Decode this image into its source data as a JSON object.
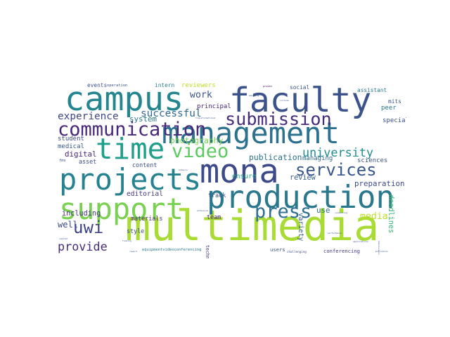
{
  "chart_data": {
    "type": "wordcloud",
    "colormap": "viridis",
    "background": "#ffffff",
    "words": [
      {
        "text": "multimedia",
        "weight": 1.0,
        "color": "#a8db34",
        "orientation": "horizontal"
      },
      {
        "text": "faculty",
        "weight": 0.8,
        "color": "#3b528b",
        "orientation": "horizontal"
      },
      {
        "text": "campus",
        "weight": 0.78,
        "color": "#25858e",
        "orientation": "horizontal"
      },
      {
        "text": "mona",
        "weight": 0.78,
        "color": "#3e4989",
        "orientation": "horizontal"
      },
      {
        "text": "production",
        "weight": 0.74,
        "color": "#2a788e",
        "orientation": "horizontal"
      },
      {
        "text": "management",
        "weight": 0.7,
        "color": "#2c718e",
        "orientation": "horizontal"
      },
      {
        "text": "projects",
        "weight": 0.7,
        "color": "#26828e",
        "orientation": "horizontal"
      },
      {
        "text": "support",
        "weight": 0.7,
        "color": "#7ad151",
        "orientation": "horizontal"
      },
      {
        "text": "time",
        "weight": 0.68,
        "color": "#1f9e89",
        "orientation": "horizontal"
      },
      {
        "text": "communication",
        "weight": 0.45,
        "color": "#482878",
        "orientation": "horizontal"
      },
      {
        "text": "submission",
        "weight": 0.42,
        "color": "#472d7b",
        "orientation": "horizontal"
      },
      {
        "text": "video",
        "weight": 0.45,
        "color": "#5ec962",
        "orientation": "horizontal"
      },
      {
        "text": "services",
        "weight": 0.4,
        "color": "#39568c",
        "orientation": "horizontal"
      },
      {
        "text": "press",
        "weight": 0.45,
        "color": "#2e6e8e",
        "orientation": "horizontal"
      },
      {
        "text": "uwi",
        "weight": 0.4,
        "color": "#414487",
        "orientation": "horizontal"
      },
      {
        "text": "university",
        "weight": 0.28,
        "color": "#228c8d",
        "orientation": "horizontal"
      },
      {
        "text": "provide",
        "weight": 0.28,
        "color": "#472d7b",
        "orientation": "horizontal"
      },
      {
        "text": "experience",
        "weight": 0.24,
        "color": "#404688",
        "orientation": "horizontal"
      },
      {
        "text": "successful",
        "weight": 0.24,
        "color": "#31688e",
        "orientation": "horizontal"
      },
      {
        "text": "work",
        "weight": 0.22,
        "color": "#3b528b",
        "orientation": "horizontal"
      },
      {
        "text": "media",
        "weight": 0.22,
        "color": "#bddf26",
        "orientation": "horizontal"
      },
      {
        "text": "photography",
        "weight": 0.19,
        "color": "#7ad151",
        "orientation": "horizontal"
      },
      {
        "text": "publication",
        "weight": 0.19,
        "color": "#2c718e",
        "orientation": "horizontal"
      },
      {
        "text": "preparation",
        "weight": 0.18,
        "color": "#3e4989",
        "orientation": "horizontal"
      },
      {
        "text": "system",
        "weight": 0.18,
        "color": "#2a788e",
        "orientation": "horizontal"
      },
      {
        "text": "digital",
        "weight": 0.18,
        "color": "#482475",
        "orientation": "horizontal"
      },
      {
        "text": "review",
        "weight": 0.17,
        "color": "#355f8d",
        "orientation": "horizontal"
      },
      {
        "text": "deadlines",
        "weight": 0.17,
        "color": "#35b779",
        "orientation": "vertical"
      },
      {
        "text": "variety",
        "weight": 0.16,
        "color": "#35608d",
        "orientation": "vertical"
      },
      {
        "text": "well",
        "weight": 0.2,
        "color": "#3e4989",
        "orientation": "horizontal"
      },
      {
        "text": "use",
        "weight": 0.18,
        "color": "#2c718e",
        "orientation": "horizontal"
      },
      {
        "text": "including",
        "weight": 0.17,
        "color": "#46337e",
        "orientation": "horizontal"
      },
      {
        "text": "editorial",
        "weight": 0.16,
        "color": "#443983",
        "orientation": "horizontal"
      },
      {
        "text": "ensure",
        "weight": 0.16,
        "color": "#22a785",
        "orientation": "horizontal"
      },
      {
        "text": "managing",
        "weight": 0.15,
        "color": "#31688e",
        "orientation": "horizontal"
      },
      {
        "text": "sciences",
        "weight": 0.15,
        "color": "#3b528b",
        "orientation": "horizontal"
      },
      {
        "text": "special",
        "weight": 0.15,
        "color": "#3b528b",
        "orientation": "horizontal"
      },
      {
        "text": "peer",
        "weight": 0.15,
        "color": "#2a788e",
        "orientation": "horizontal"
      },
      {
        "text": "principal",
        "weight": 0.15,
        "color": "#482878",
        "orientation": "horizontal"
      },
      {
        "text": "student",
        "weight": 0.15,
        "color": "#3e4989",
        "orientation": "horizontal"
      },
      {
        "text": "medical",
        "weight": 0.15,
        "color": "#38588c",
        "orientation": "horizontal"
      },
      {
        "text": "asset",
        "weight": 0.14,
        "color": "#3e4989",
        "orientation": "horizontal"
      },
      {
        "text": "content",
        "weight": 0.14,
        "color": "#3b528b",
        "orientation": "horizontal"
      },
      {
        "text": "materials",
        "weight": 0.14,
        "color": "#472d7b",
        "orientation": "horizontal"
      },
      {
        "text": "style",
        "weight": 0.14,
        "color": "#3e4989",
        "orientation": "horizontal"
      },
      {
        "text": "team",
        "weight": 0.14,
        "color": "#481f70",
        "orientation": "horizontal"
      },
      {
        "text": "track",
        "weight": 0.14,
        "color": "#3b528b",
        "orientation": "horizontal"
      },
      {
        "text": "technologies",
        "weight": 0.11,
        "color": "#46337e",
        "orientation": "vertical"
      },
      {
        "text": "reviewers",
        "weight": 0.15,
        "color": "#bddf26",
        "orientation": "horizontal"
      },
      {
        "text": "events",
        "weight": 0.13,
        "color": "#3b528b",
        "orientation": "horizontal"
      },
      {
        "text": "intern",
        "weight": 0.13,
        "color": "#2a788e",
        "orientation": "horizontal"
      },
      {
        "text": "social",
        "weight": 0.13,
        "color": "#3b528b",
        "orientation": "horizontal"
      },
      {
        "text": "assistant",
        "weight": 0.13,
        "color": "#2a788e",
        "orientation": "horizontal"
      },
      {
        "text": "mits",
        "weight": 0.13,
        "color": "#3b528b",
        "orientation": "horizontal"
      },
      {
        "text": "conferencing",
        "weight": 0.12,
        "color": "#443983",
        "orientation": "horizontal"
      },
      {
        "text": "users",
        "weight": 0.12,
        "color": "#3b528b",
        "orientation": "horizontal"
      },
      {
        "text": "equipmentvideoconferencing",
        "weight": 0.09,
        "color": "#2a788e",
        "orientation": "horizontal"
      },
      {
        "text": "operation",
        "weight": 0.09,
        "color": "#3b528b",
        "orientation": "horizontal"
      },
      {
        "text": "fms",
        "weight": 0.09,
        "color": "#3b528b",
        "orientation": "horizontal"
      },
      {
        "text": "challenging",
        "weight": 0.07,
        "color": "#3e4989",
        "orientation": "horizontal"
      },
      {
        "text": "proven",
        "weight": 0.06,
        "color": "#440154",
        "orientation": "horizontal"
      },
      {
        "text": "transformational",
        "weight": 0.05,
        "color": "#3b528b",
        "orientation": "horizontal"
      },
      {
        "text": "performance",
        "weight": 0.05,
        "color": "#3b528b",
        "orientation": "horizontal"
      },
      {
        "text": "applications",
        "weight": 0.05,
        "color": "#3b528b",
        "orientation": "horizontal"
      },
      {
        "text": "conducting",
        "weight": 0.05,
        "color": "#3b528b",
        "orientation": "horizontal"
      },
      {
        "text": "extensive",
        "weight": 0.05,
        "color": "#3b528b",
        "orientation": "horizontal"
      },
      {
        "text": "enhance",
        "weight": 0.04,
        "color": "#3b528b",
        "orientation": "horizontal"
      },
      {
        "text": "emerging",
        "weight": 0.04,
        "color": "#3b528b",
        "orientation": "horizontal"
      },
      {
        "text": "include",
        "weight": 0.04,
        "color": "#3b528b",
        "orientation": "horizontal"
      },
      {
        "text": "funding",
        "weight": 0.04,
        "color": "#3b528b",
        "orientation": "horizontal"
      },
      {
        "text": "capital",
        "weight": 0.04,
        "color": "#3b528b",
        "orientation": "horizontal"
      },
      {
        "text": "reward",
        "weight": 0.04,
        "color": "#3b528b",
        "orientation": "horizontal"
      },
      {
        "text": "impressions",
        "weight": 0.04,
        "color": "#3b528b",
        "orientation": "vertical"
      },
      {
        "text": "motivation",
        "weight": 0.04,
        "color": "#3b528b",
        "orientation": "horizontal"
      }
    ]
  }
}
